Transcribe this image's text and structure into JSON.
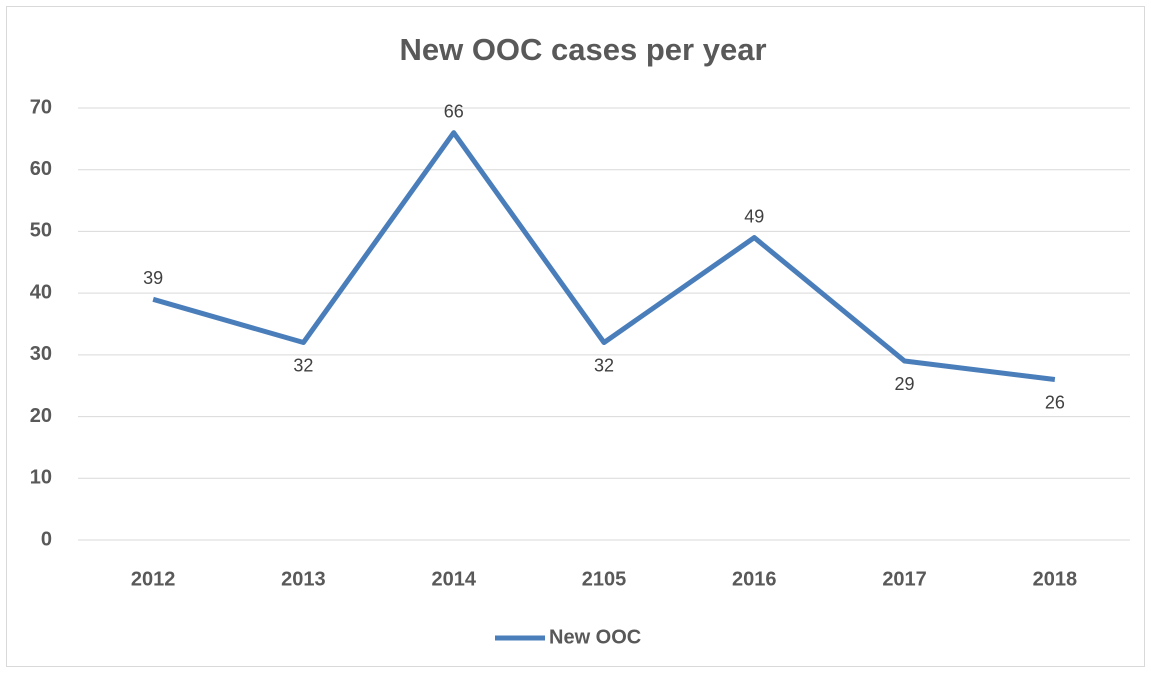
{
  "chart_data": {
    "type": "line",
    "title": "New OOC cases per year",
    "categories": [
      "2012",
      "2013",
      "2014",
      "2105",
      "2016",
      "2017",
      "2018"
    ],
    "series": [
      {
        "name": "New OOC",
        "color": "#4a7ebb",
        "values": [
          39,
          32,
          66,
          32,
          49,
          29,
          26
        ]
      }
    ],
    "ylim": [
      0,
      70
    ],
    "yticks": [
      0,
      10,
      20,
      30,
      40,
      50,
      60,
      70
    ],
    "grid": true,
    "legend": "bottom"
  }
}
